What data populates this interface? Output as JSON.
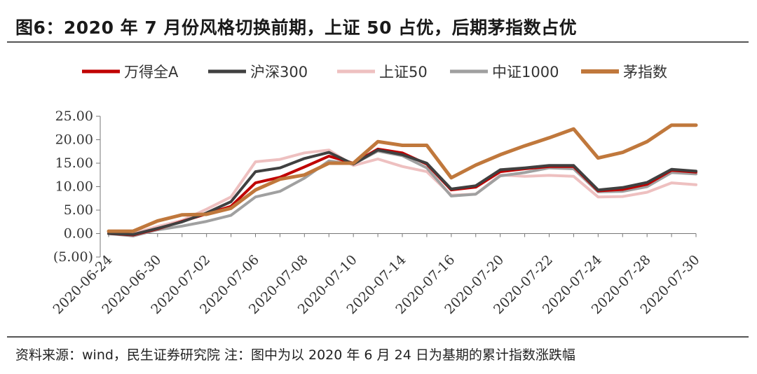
{
  "title": "图6：2020 年 7 月份风格切换前期，上证 50 占优，后期茅指数占优",
  "source": "资料来源：wind，民生证券研究院 注：图中为以 2020 年 6 月 24 日为基期的累计指数涨跌幅",
  "chart_data": {
    "type": "line",
    "title": "图6：2020 年 7 月份风格切换前期，上证 50 占优，后期茅指数占优",
    "xlabel": "",
    "ylabel": "",
    "ylim": [
      -5,
      25
    ],
    "yticks": [
      25,
      20,
      15,
      10,
      5,
      0,
      -5
    ],
    "ytick_labels": [
      "25.00",
      "20.00",
      "15.00",
      "10.00",
      "5.00",
      "0.00",
      "(5.00)"
    ],
    "negative_tick_color": "#cc0000",
    "grid": false,
    "legend_position": "top",
    "x": [
      "2020-06-24",
      "2020-06-29",
      "2020-06-30",
      "2020-07-01",
      "2020-07-02",
      "2020-07-03",
      "2020-07-06",
      "2020-07-07",
      "2020-07-08",
      "2020-07-09",
      "2020-07-10",
      "2020-07-13",
      "2020-07-14",
      "2020-07-15",
      "2020-07-16",
      "2020-07-17",
      "2020-07-20",
      "2020-07-21",
      "2020-07-22",
      "2020-07-23",
      "2020-07-24",
      "2020-07-27",
      "2020-07-28",
      "2020-07-29",
      "2020-07-30"
    ],
    "xtick_labels": [
      "2020-06-24",
      "2020-06-30",
      "2020-07-02",
      "2020-07-06",
      "2020-07-08",
      "2020-07-10",
      "2020-07-14",
      "2020-07-16",
      "2020-07-20",
      "2020-07-22",
      "2020-07-24",
      "2020-07-28",
      "2020-07-30"
    ],
    "series": [
      {
        "name": "万得全A",
        "color": "#c00000",
        "values": [
          0.0,
          -0.3,
          1.0,
          2.6,
          4.2,
          5.8,
          10.8,
          12.0,
          14.2,
          16.5,
          15.0,
          18.0,
          17.2,
          14.8,
          9.3,
          9.9,
          13.2,
          13.8,
          14.3,
          14.3,
          9.1,
          9.4,
          10.5,
          13.5,
          13.1
        ]
      },
      {
        "name": "沪深300",
        "color": "#404040",
        "values": [
          0.0,
          -0.2,
          1.1,
          2.5,
          4.4,
          6.8,
          13.2,
          14.0,
          16.0,
          17.3,
          14.8,
          17.8,
          16.8,
          15.0,
          9.5,
          10.2,
          13.6,
          14.0,
          14.5,
          14.5,
          9.3,
          9.8,
          10.9,
          13.7,
          13.3
        ]
      },
      {
        "name": "上证50",
        "color": "#eec0c0",
        "values": [
          0.0,
          0.0,
          1.5,
          2.8,
          5.2,
          7.8,
          15.3,
          15.8,
          17.2,
          17.8,
          14.5,
          15.9,
          14.3,
          13.2,
          8.2,
          8.4,
          12.5,
          12.2,
          12.4,
          12.2,
          7.8,
          7.9,
          8.8,
          10.8,
          10.4
        ]
      },
      {
        "name": "中证1000",
        "color": "#a0a0a0",
        "values": [
          0.0,
          -0.5,
          0.8,
          1.6,
          2.6,
          3.9,
          7.8,
          9.0,
          11.8,
          15.5,
          14.8,
          17.6,
          16.6,
          14.0,
          8.0,
          8.4,
          12.3,
          13.0,
          14.0,
          13.8,
          8.9,
          9.0,
          10.0,
          13.0,
          12.7
        ]
      },
      {
        "name": "茅指数",
        "color": "#c0783c",
        "values": [
          0.5,
          0.5,
          2.7,
          4.0,
          4.1,
          5.4,
          9.3,
          11.6,
          12.5,
          15.0,
          15.0,
          19.6,
          18.8,
          18.8,
          11.9,
          14.6,
          16.8,
          18.7,
          20.4,
          22.3,
          16.1,
          17.3,
          19.6,
          23.1,
          23.1
        ]
      }
    ]
  }
}
